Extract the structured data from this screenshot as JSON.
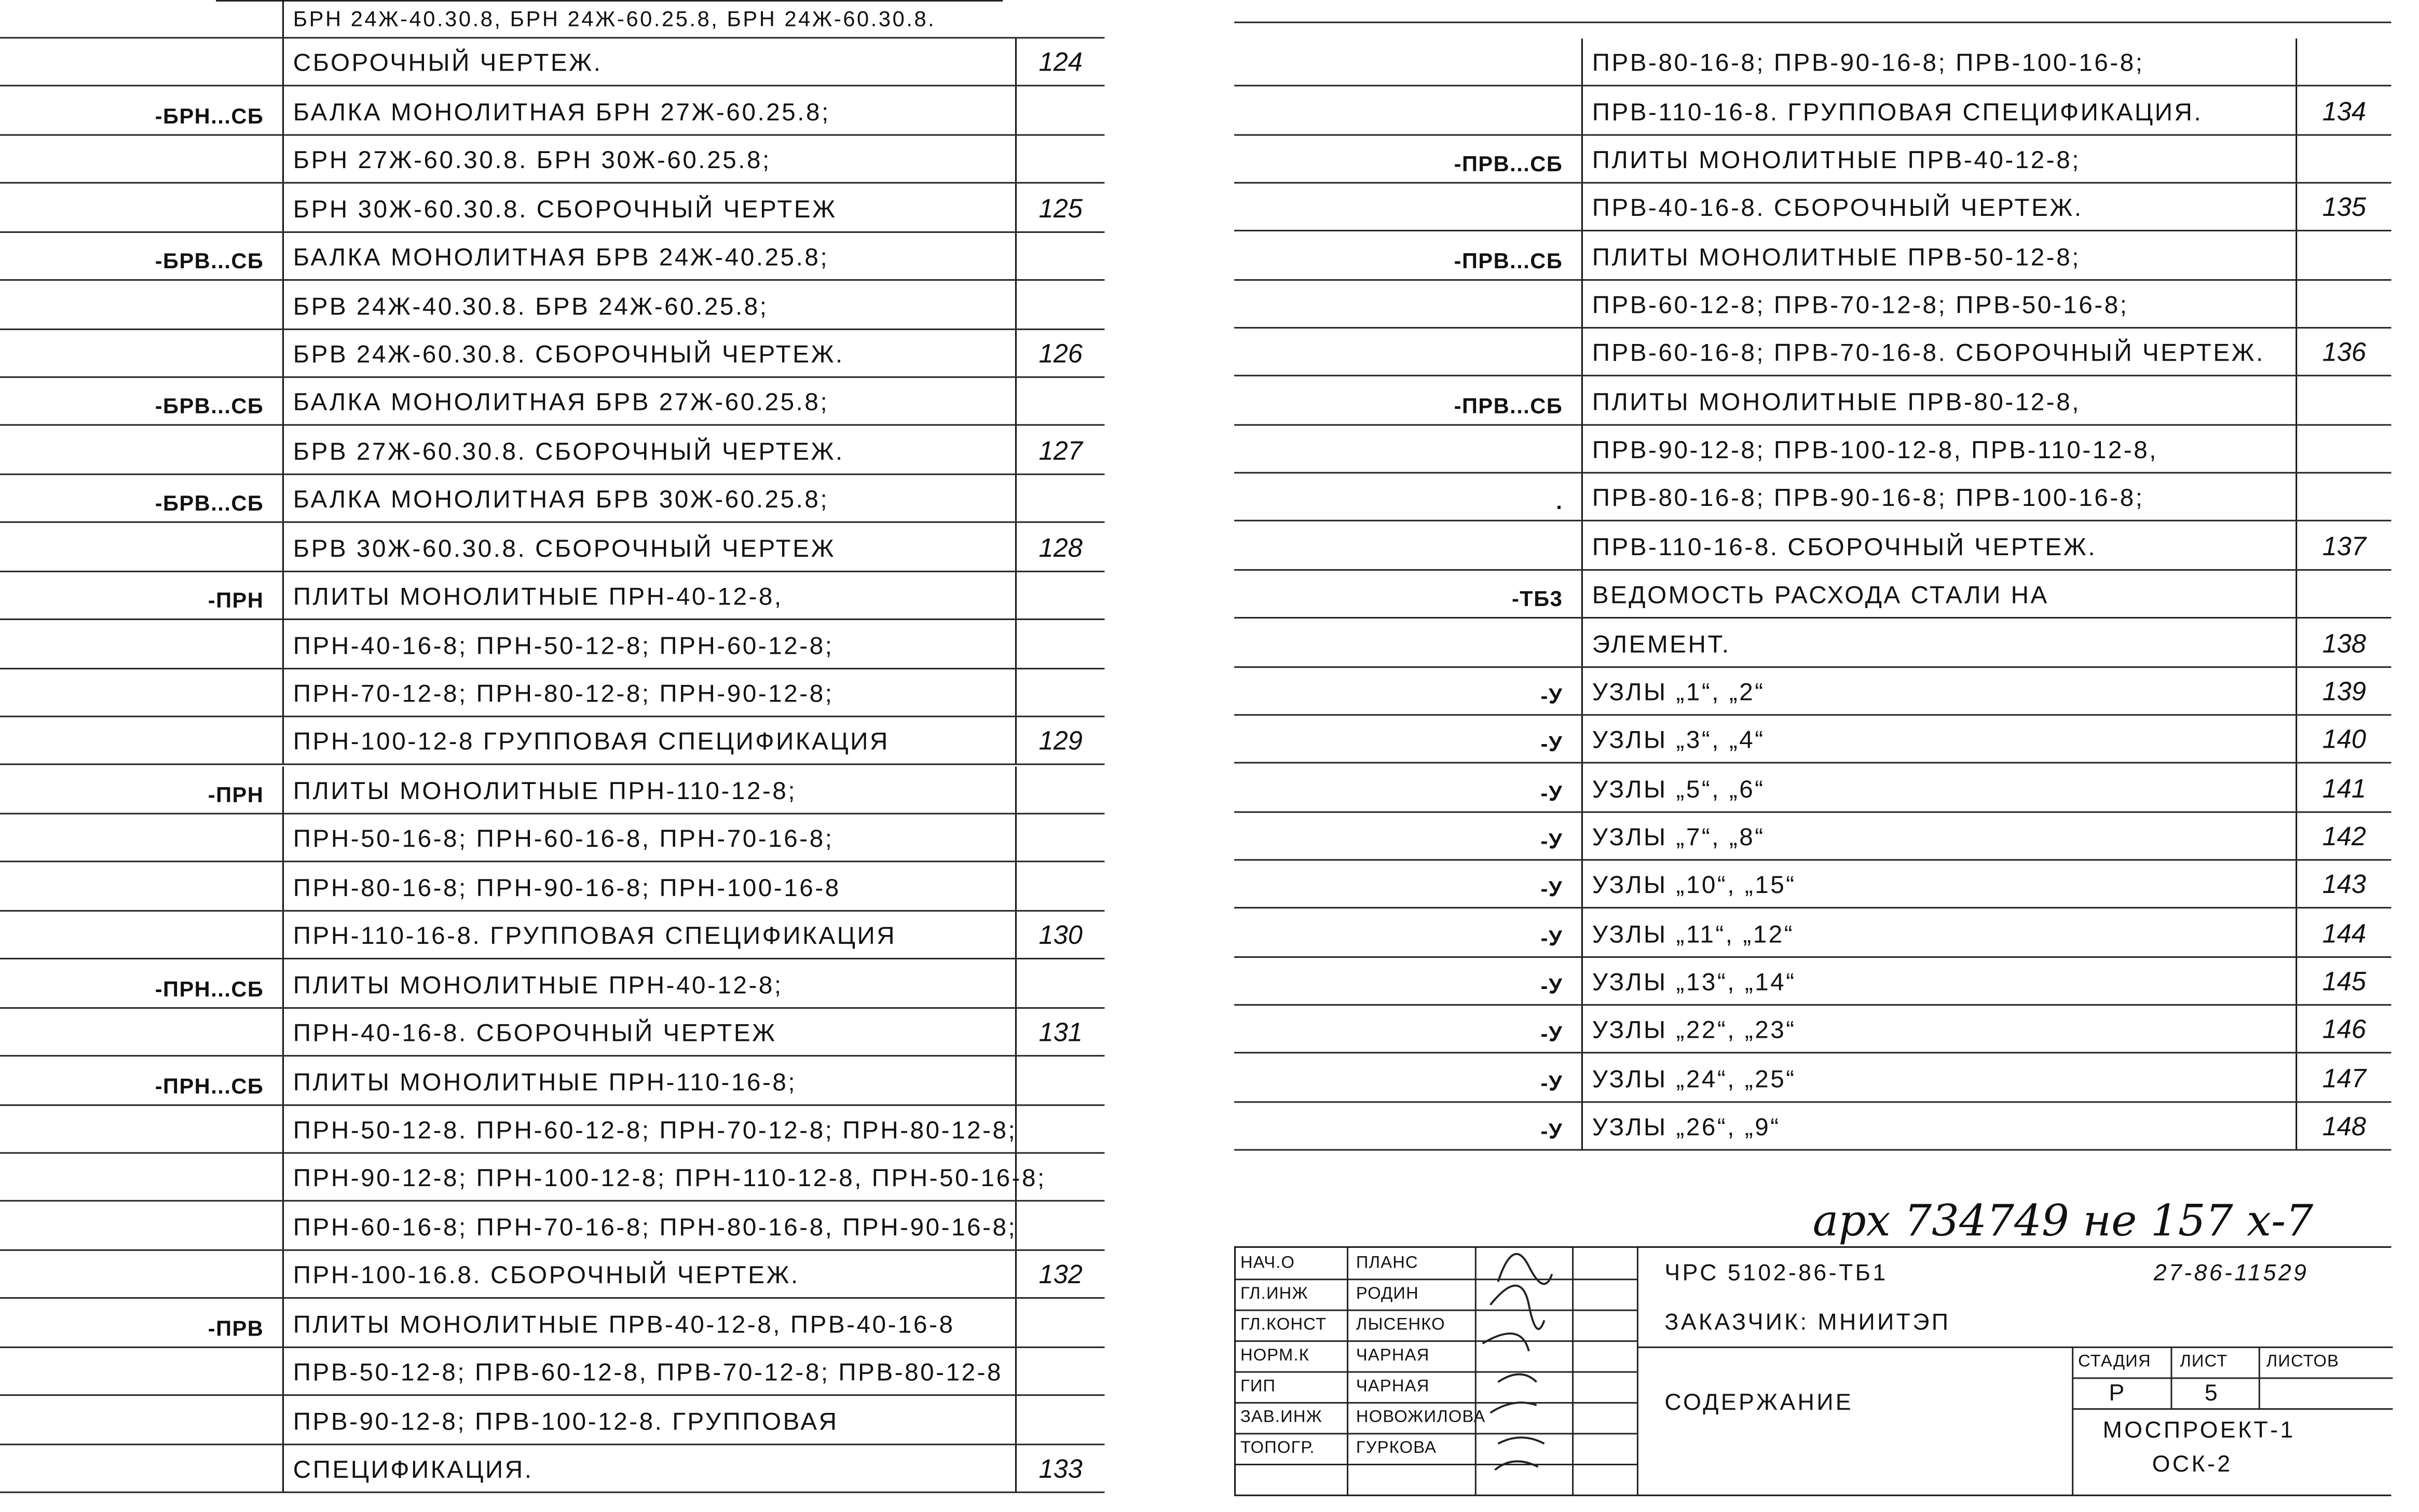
{
  "left_table": {
    "top_partial": "БРН 24Ж-40.30.8, БРН 24Ж-60.25.8, БРН 24Ж-60.30.8.",
    "rows": [
      {
        "code": "",
        "text": "Сборочный чертеж.",
        "page": "124"
      },
      {
        "code": "-БРН...СБ",
        "text": "Балка монолитная БРН 27Ж-60.25.8;",
        "page": ""
      },
      {
        "code": "",
        "text": "БРН 27Ж-60.30.8. БРН 30Ж-60.25.8;",
        "page": ""
      },
      {
        "code": "",
        "text": "БРН 30Ж-60.30.8. Сборочный чертеж",
        "page": "125"
      },
      {
        "code": "-БРВ...СБ",
        "text": "Балка монолитная БРВ 24Ж-40.25.8;",
        "page": ""
      },
      {
        "code": "",
        "text": "БРВ 24Ж-40.30.8. БРВ 24Ж-60.25.8;",
        "page": ""
      },
      {
        "code": "",
        "text": "БРВ 24Ж-60.30.8. Сборочный чертеж.",
        "page": "126"
      },
      {
        "code": "-БРВ...СБ",
        "text": "Балка монолитная БРВ 27Ж-60.25.8;",
        "page": ""
      },
      {
        "code": "",
        "text": "БРВ 27Ж-60.30.8. Сборочный чертеж.",
        "page": "127"
      },
      {
        "code": "-БРВ...СБ",
        "text": "Балка монолитная БРВ 30Ж-60.25.8;",
        "page": ""
      },
      {
        "code": "",
        "text": "БРВ 30Ж-60.30.8. Сборочный чертеж",
        "page": "128"
      },
      {
        "code": "-ПРН",
        "text": "Плиты монолитные ПРН-40-12-8,",
        "page": ""
      },
      {
        "code": "",
        "text": "ПРН-40-16-8; ПРН-50-12-8; ПРН-60-12-8;",
        "page": ""
      },
      {
        "code": "",
        "text": "ПРН-70-12-8; ПРН-80-12-8; ПРН-90-12-8;",
        "page": ""
      },
      {
        "code": "",
        "text": "ПРН-100-12-8 Групповая спецификация",
        "page": "129"
      },
      {
        "code": "-ПРН",
        "text": "Плиты монолитные ПРН-110-12-8;",
        "page": ""
      },
      {
        "code": "",
        "text": "ПРН-50-16-8; ПРН-60-16-8, ПРН-70-16-8;",
        "page": ""
      },
      {
        "code": "",
        "text": "ПРН-80-16-8; ПРН-90-16-8; ПРН-100-16-8",
        "page": ""
      },
      {
        "code": "",
        "text": "ПРН-110-16-8. Групповая спецификация",
        "page": "130"
      },
      {
        "code": "-ПРН...СБ",
        "text": "Плиты монолитные ПРН-40-12-8;",
        "page": ""
      },
      {
        "code": "",
        "text": "ПРН-40-16-8. Сборочный чертеж",
        "page": "131"
      },
      {
        "code": "-ПРН...СБ",
        "text": "Плиты монолитные ПРН-110-16-8;",
        "page": ""
      },
      {
        "code": "",
        "text": "ПРН-50-12-8. ПРН-60-12-8; ПРН-70-12-8; ПРН-80-12-8;",
        "page": ""
      },
      {
        "code": "",
        "text": "ПРН-90-12-8; ПРН-100-12-8; ПРН-110-12-8, ПРН-50-16-8;",
        "page": ""
      },
      {
        "code": "",
        "text": "ПРН-60-16-8; ПРН-70-16-8; ПРН-80-16-8, ПРН-90-16-8;",
        "page": ""
      },
      {
        "code": "",
        "text": "ПРН-100-16.8. Сборочный чертеж.",
        "page": "132"
      },
      {
        "code": "-ПРВ",
        "text": "Плиты монолитные ПРВ-40-12-8, ПРВ-40-16-8",
        "page": ""
      },
      {
        "code": "",
        "text": "ПРВ-50-12-8; ПРВ-60-12-8, ПРВ-70-12-8; ПРВ-80-12-8",
        "page": ""
      },
      {
        "code": "",
        "text": "ПРВ-90-12-8; ПРВ-100-12-8. Групповая",
        "page": ""
      },
      {
        "code": "",
        "text": "спецификация.",
        "page": "133"
      }
    ]
  },
  "right_table": {
    "rows": [
      {
        "code": "",
        "text": "ПРВ-80-16-8; ПРВ-90-16-8; ПРВ-100-16-8;",
        "page": ""
      },
      {
        "code": "",
        "text": "ПРВ-110-16-8. Групповая спецификация.",
        "page": "134"
      },
      {
        "code": "-ПРВ...СБ",
        "text": "Плиты монолитные ПРВ-40-12-8;",
        "page": ""
      },
      {
        "code": "",
        "text": "ПРВ-40-16-8. Сборочный чертеж.",
        "page": "135"
      },
      {
        "code": "-ПРВ...СБ",
        "text": "Плиты монолитные ПРВ-50-12-8;",
        "page": ""
      },
      {
        "code": "",
        "text": "ПРВ-60-12-8; ПРВ-70-12-8; ПРВ-50-16-8;",
        "page": ""
      },
      {
        "code": "",
        "text": "ПРВ-60-16-8; ПРВ-70-16-8. Сборочный чертеж.",
        "page": "136"
      },
      {
        "code": "-ПРВ...СБ",
        "text": "Плиты монолитные ПРВ-80-12-8,",
        "page": ""
      },
      {
        "code": "",
        "text": "ПРВ-90-12-8; ПРВ-100-12-8, ПРВ-110-12-8,",
        "page": ""
      },
      {
        "code": ".",
        "text": "ПРВ-80-16-8; ПРВ-90-16-8; ПРВ-100-16-8;",
        "page": ""
      },
      {
        "code": "",
        "text": "ПРВ-110-16-8. Сборочный чертеж.",
        "page": "137"
      },
      {
        "code": "-ТБ3",
        "text": "Ведомость расхода стали на",
        "page": ""
      },
      {
        "code": "",
        "text": "элемент.",
        "page": "138"
      },
      {
        "code": "-У",
        "text": "Узлы „1“, „2“",
        "page": "139"
      },
      {
        "code": "-У",
        "text": "Узлы „3“, „4“",
        "page": "140"
      },
      {
        "code": "-У",
        "text": "Узлы „5“, „6“",
        "page": "141"
      },
      {
        "code": "-У",
        "text": "Узлы „7“, „8“",
        "page": "142"
      },
      {
        "code": "-У",
        "text": "Узлы „10“, „15“",
        "page": "143"
      },
      {
        "code": "-У",
        "text": "Узлы „11“, „12“",
        "page": "144"
      },
      {
        "code": "-У",
        "text": "Узлы „13“, „14“",
        "page": "145"
      },
      {
        "code": "-У",
        "text": "Узлы „22“, „23“",
        "page": "146"
      },
      {
        "code": "-У",
        "text": "Узлы „24“, „25“",
        "page": "147"
      },
      {
        "code": "-У",
        "text": "Узлы „26“, „9“",
        "page": "148"
      }
    ]
  },
  "archive_note": "арх 734749 не 157 х-7",
  "title_block": {
    "signatories": [
      {
        "role": "Нач.О",
        "name": "Планс"
      },
      {
        "role": "Гл.инж",
        "name": "Родин"
      },
      {
        "role": "Гл.конст",
        "name": "Лысенко"
      },
      {
        "role": "Норм.к",
        "name": "Чарная"
      },
      {
        "role": "ГИП",
        "name": "Чарная"
      },
      {
        "role": "Зав.инж",
        "name": "Новожилова"
      },
      {
        "role": "Топогр.",
        "name": "Гуркова"
      }
    ],
    "doc_code": "ЧРС 5102-86-ТБ1",
    "doc_number": "27-86-11529",
    "customer": "Заказчик: МНИИТЭП",
    "sheet_title": "Содержание",
    "stage_label": "Стадия",
    "sheet_label": "Лист",
    "sheets_label": "Листов",
    "stage": "Р",
    "sheet": "5",
    "organization": "Моспроект-1",
    "department": "ОСК-2"
  }
}
